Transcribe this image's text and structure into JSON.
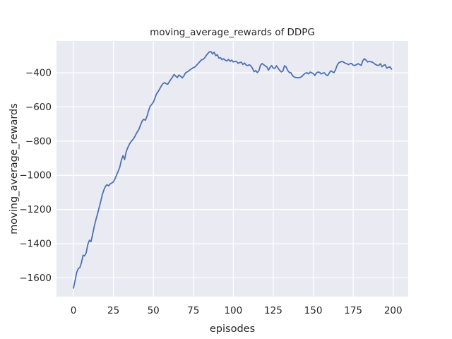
{
  "chart_data": {
    "type": "line",
    "title": "moving_average_rewards of DDPG",
    "xlabel": "episodes",
    "ylabel": "moving_average_rewards",
    "xlim": [
      -10.6,
      209.4
    ],
    "ylim": [
      -1710,
      -214
    ],
    "grid": true,
    "legend_position": "none",
    "xticks": {
      "values": [
        0,
        25,
        50,
        75,
        100,
        125,
        150,
        175,
        200
      ],
      "labels": [
        "0",
        "25",
        "50",
        "75",
        "100",
        "125",
        "150",
        "175",
        "200"
      ]
    },
    "yticks": {
      "values": [
        -400,
        -600,
        -800,
        -1000,
        -1200,
        -1400,
        -1600
      ],
      "labels": [
        "−400",
        "−600",
        "−800",
        "−1000",
        "−1200",
        "−1400",
        "−1600"
      ]
    },
    "colors": {
      "figure_bg": "#ffffff",
      "axes_bg": "#eaeaf2",
      "grid": "#ffffff",
      "text": "#262626",
      "line": "#4c72b0"
    },
    "series": [
      {
        "name": "moving_average_rewards",
        "color": "#4c72b0",
        "x": [
          0,
          1,
          2,
          3,
          4,
          5,
          6,
          7,
          8,
          9,
          10,
          11,
          12,
          13,
          14,
          15,
          16,
          17,
          18,
          19,
          20,
          21,
          22,
          23,
          24,
          25,
          26,
          27,
          28,
          29,
          30,
          31,
          32,
          33,
          34,
          35,
          36,
          37,
          38,
          39,
          40,
          41,
          42,
          43,
          44,
          45,
          46,
          47,
          48,
          49,
          50,
          51,
          52,
          53,
          54,
          55,
          56,
          57,
          58,
          59,
          60,
          61,
          62,
          63,
          64,
          65,
          66,
          67,
          68,
          69,
          70,
          71,
          72,
          73,
          74,
          75,
          76,
          77,
          78,
          79,
          80,
          81,
          82,
          83,
          84,
          85,
          86,
          87,
          88,
          89,
          90,
          91,
          92,
          93,
          94,
          95,
          96,
          97,
          98,
          99,
          100,
          101,
          102,
          103,
          104,
          105,
          106,
          107,
          108,
          109,
          110,
          111,
          112,
          113,
          114,
          115,
          116,
          117,
          118,
          119,
          120,
          121,
          122,
          123,
          124,
          125,
          126,
          127,
          128,
          129,
          130,
          131,
          132,
          133,
          134,
          135,
          136,
          137,
          138,
          139,
          140,
          141,
          142,
          143,
          144,
          145,
          146,
          147,
          148,
          149,
          150,
          151,
          152,
          153,
          154,
          155,
          156,
          157,
          158,
          159,
          160,
          161,
          162,
          163,
          164,
          165,
          166,
          167,
          168,
          169,
          170,
          171,
          172,
          173,
          174,
          175,
          176,
          177,
          178,
          179,
          180,
          181,
          182,
          183,
          184,
          185,
          186,
          187,
          188,
          189,
          190,
          191,
          192,
          193,
          194,
          195,
          196,
          197,
          198,
          199
        ],
        "y": [
          -1660,
          -1618,
          -1570,
          -1546,
          -1540,
          -1512,
          -1468,
          -1472,
          -1452,
          -1404,
          -1380,
          -1388,
          -1345,
          -1300,
          -1262,
          -1228,
          -1192,
          -1155,
          -1115,
          -1087,
          -1065,
          -1055,
          -1062,
          -1050,
          -1045,
          -1038,
          -1020,
          -998,
          -976,
          -952,
          -910,
          -885,
          -908,
          -862,
          -838,
          -818,
          -803,
          -793,
          -780,
          -762,
          -745,
          -730,
          -705,
          -682,
          -672,
          -678,
          -655,
          -622,
          -596,
          -585,
          -572,
          -548,
          -522,
          -510,
          -494,
          -477,
          -464,
          -458,
          -464,
          -467,
          -452,
          -438,
          -424,
          -410,
          -420,
          -428,
          -413,
          -420,
          -430,
          -420,
          -402,
          -396,
          -390,
          -382,
          -376,
          -370,
          -366,
          -356,
          -346,
          -336,
          -325,
          -322,
          -314,
          -300,
          -288,
          -278,
          -276,
          -290,
          -280,
          -300,
          -294,
          -315,
          -312,
          -324,
          -318,
          -327,
          -330,
          -322,
          -333,
          -326,
          -337,
          -334,
          -334,
          -345,
          -340,
          -338,
          -352,
          -343,
          -355,
          -358,
          -353,
          -360,
          -374,
          -394,
          -387,
          -399,
          -388,
          -356,
          -346,
          -353,
          -360,
          -366,
          -385,
          -368,
          -358,
          -373,
          -374,
          -359,
          -373,
          -386,
          -395,
          -390,
          -359,
          -366,
          -386,
          -398,
          -400,
          -416,
          -424,
          -428,
          -429,
          -429,
          -427,
          -421,
          -410,
          -403,
          -400,
          -407,
          -396,
          -400,
          -405,
          -416,
          -401,
          -396,
          -398,
          -407,
          -402,
          -400,
          -412,
          -417,
          -402,
          -388,
          -395,
          -399,
          -381,
          -355,
          -342,
          -337,
          -334,
          -338,
          -344,
          -347,
          -353,
          -347,
          -346,
          -356,
          -357,
          -353,
          -347,
          -352,
          -357,
          -330,
          -318,
          -326,
          -337,
          -333,
          -336,
          -338,
          -345,
          -352,
          -356,
          -357,
          -347,
          -365,
          -357,
          -353,
          -373,
          -368,
          -366,
          -379
        ]
      }
    ]
  }
}
